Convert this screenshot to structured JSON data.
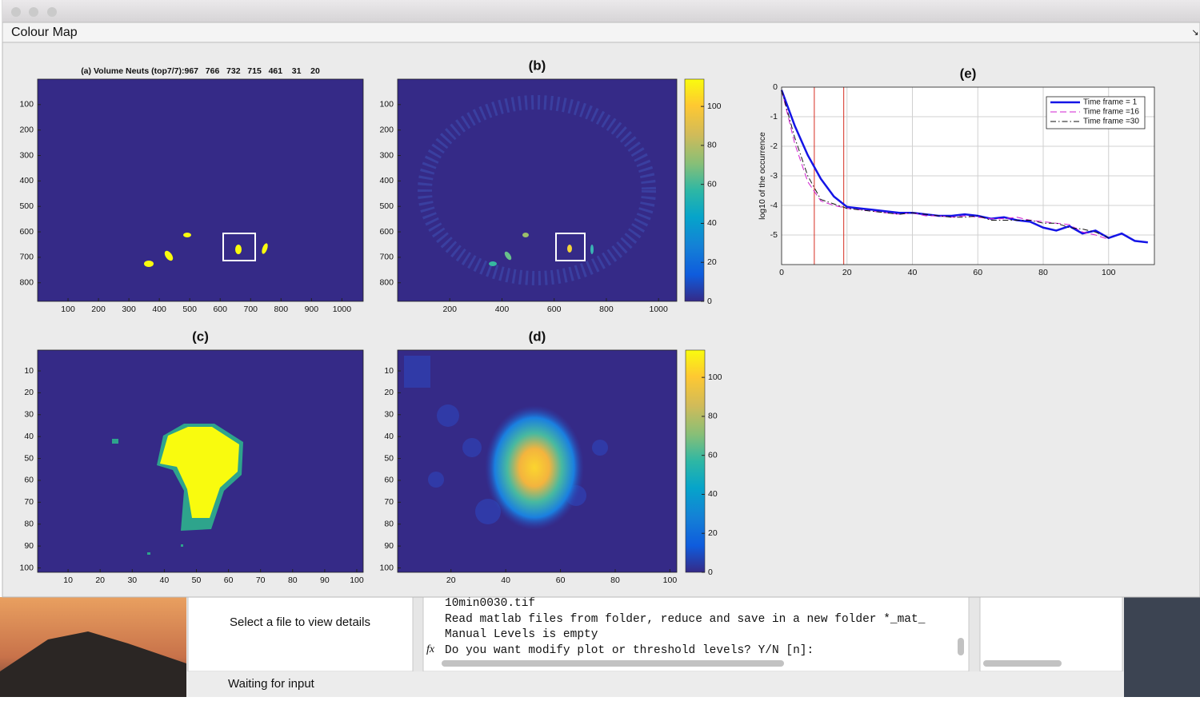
{
  "window": {
    "title": "Colour Map"
  },
  "chart_data": [
    {
      "type": "heatmap",
      "title": "(a) Volume Neuts (top7/7):967   766   732   715   461    31    20",
      "ydir": "reverse",
      "xlim": [
        0,
        1070
      ],
      "ylim": [
        0,
        873
      ],
      "xticks": [
        100,
        200,
        300,
        400,
        500,
        600,
        700,
        800,
        900,
        1000
      ],
      "yticks": [
        100,
        200,
        300,
        400,
        500,
        600,
        700,
        800
      ]
    },
    {
      "type": "heatmap",
      "title": "(b)",
      "ydir": "reverse",
      "xlim": [
        0,
        1070
      ],
      "ylim": [
        0,
        873
      ],
      "xticks": [
        200,
        400,
        600,
        800,
        1000
      ],
      "yticks": [
        100,
        200,
        300,
        400,
        500,
        600,
        700,
        800
      ]
    },
    {
      "type": "colorbar",
      "lim": [
        0,
        114
      ],
      "ticks": [
        0,
        20,
        40,
        60,
        80,
        100
      ]
    },
    {
      "type": "heatmap",
      "title": "(c)",
      "ydir": "reverse",
      "xlim": [
        0.5,
        102
      ],
      "ylim": [
        0.5,
        102
      ],
      "xticks": [
        10,
        20,
        30,
        40,
        50,
        60,
        70,
        80,
        90,
        100
      ],
      "yticks": [
        10,
        20,
        30,
        40,
        50,
        60,
        70,
        80,
        90,
        100
      ]
    },
    {
      "type": "heatmap",
      "title": "(d)",
      "ydir": "reverse",
      "xlim": [
        0.5,
        102.5
      ],
      "ylim": [
        0.5,
        102
      ],
      "xticks": [
        20,
        40,
        60,
        80,
        100
      ],
      "yticks": [
        10,
        20,
        30,
        40,
        50,
        60,
        70,
        80,
        90,
        100
      ]
    },
    {
      "type": "colorbar",
      "lim": [
        0,
        114
      ],
      "ticks": [
        0,
        20,
        40,
        60,
        80,
        100
      ]
    },
    {
      "type": "line",
      "title": "(e)",
      "y_label": "log10 of the occurrence",
      "grid": true,
      "legend": "top-right",
      "xlim": [
        0,
        114
      ],
      "ylim": [
        -6,
        0
      ],
      "xticks": [
        0,
        20,
        40,
        60,
        80,
        100
      ],
      "yticks": [
        0,
        -1,
        -2,
        -3,
        -4,
        -5
      ],
      "vlines": {
        "color": "#d62d20",
        "x": [
          10,
          19
        ]
      },
      "x": [
        0,
        4,
        8,
        12,
        16,
        20,
        24,
        28,
        32,
        36,
        40,
        44,
        48,
        52,
        56,
        60,
        64,
        68,
        72,
        76,
        80,
        84,
        88,
        92,
        96,
        100,
        104,
        108,
        112
      ],
      "series": [
        {
          "name": "Time frame = 1",
          "color": "#1414e6",
          "style": "solid",
          "width": 2.5,
          "values": [
            -0.1,
            -1.3,
            -2.3,
            -3.1,
            -3.7,
            -4.05,
            -4.1,
            -4.15,
            -4.2,
            -4.25,
            -4.25,
            -4.3,
            -4.35,
            -4.35,
            -4.3,
            -4.35,
            -4.45,
            -4.4,
            -4.5,
            -4.55,
            -4.75,
            -4.85,
            -4.7,
            -4.95,
            -4.85,
            -5.1,
            -4.95,
            -5.2,
            -5.25
          ]
        },
        {
          "name": "Time frame =16",
          "color": "#d21fd2",
          "style": "dashed",
          "width": 1,
          "values": [
            -0.1,
            -1.9,
            -3.2,
            -3.85,
            -4.0,
            -4.1,
            -4.15,
            -4.2,
            -4.25,
            -4.3,
            -4.25,
            -4.35,
            -4.35,
            -4.4,
            -4.35,
            -4.4,
            -4.45,
            -4.45,
            -4.4,
            -4.5,
            -4.55,
            -4.6,
            -4.65,
            -4.9,
            -5.0,
            -5.15,
            null,
            null,
            null
          ]
        },
        {
          "name": "Time frame =30",
          "color": "#111111",
          "style": "dashdot",
          "width": 1,
          "values": [
            -0.1,
            -1.7,
            -3.0,
            -3.8,
            -3.95,
            -4.1,
            -4.15,
            -4.2,
            -4.25,
            -4.3,
            -4.25,
            -4.3,
            -4.35,
            -4.4,
            -4.4,
            -4.35,
            -4.5,
            -4.5,
            -4.5,
            -4.5,
            -4.6,
            -4.6,
            -4.75,
            -4.8,
            -4.9,
            -5.1,
            null,
            null,
            null
          ]
        }
      ]
    }
  ],
  "file_panel": {
    "message": "Select a file to view details"
  },
  "console": {
    "prompt_icon": "fx",
    "lines": [
      "10min0030.tif",
      "Read matlab files from folder, reduce and save in a new folder *_mat_",
      "Manual Levels is empty",
      "Do you want modify plot or threshold levels? Y/N [n]:"
    ]
  },
  "status": {
    "text": "Waiting for input"
  }
}
